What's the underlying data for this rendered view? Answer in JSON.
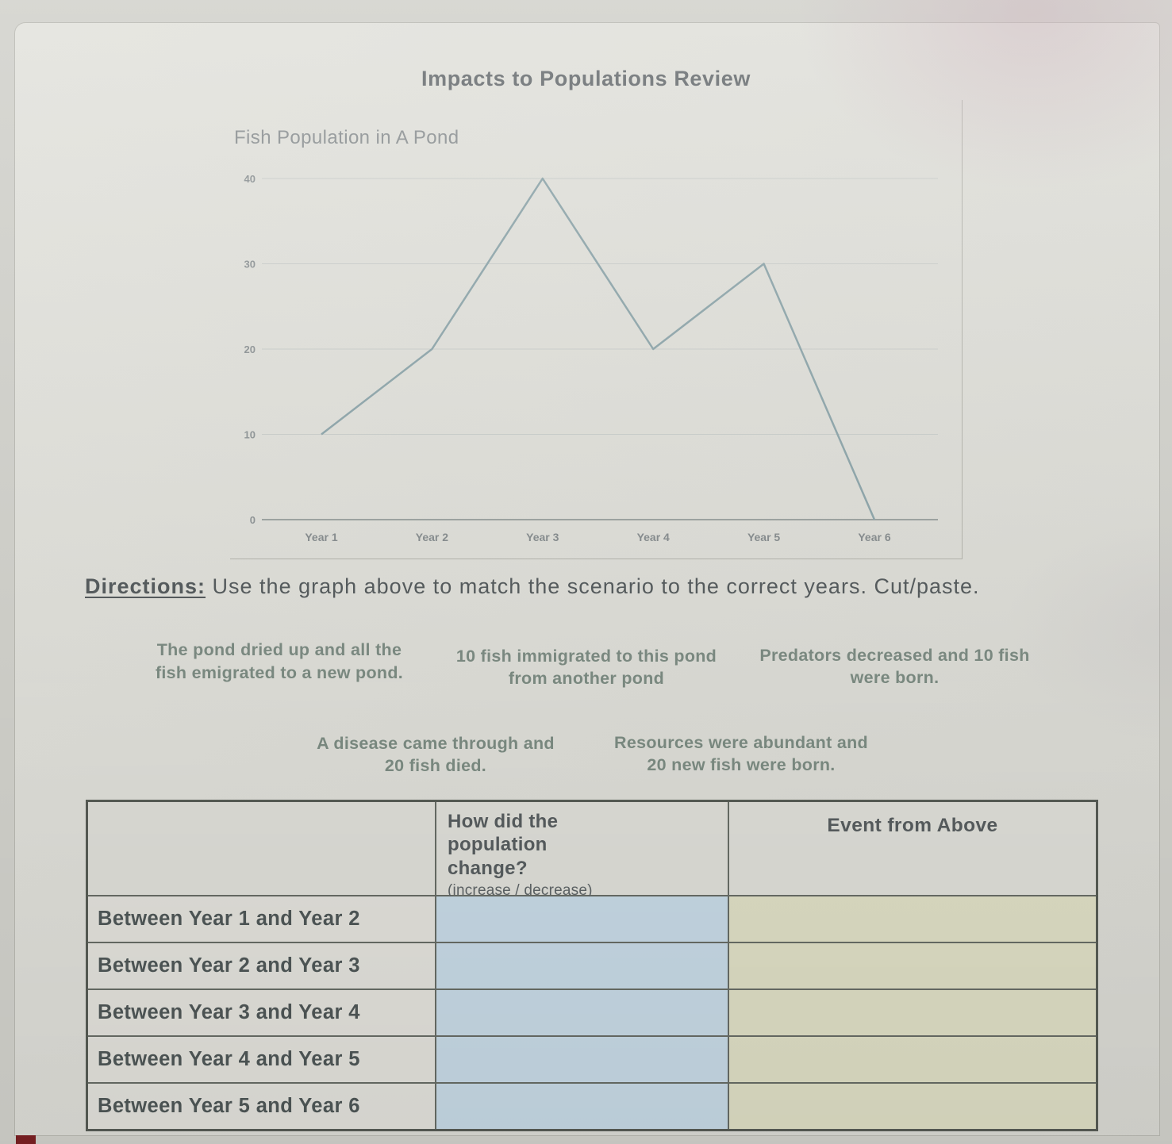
{
  "page": {
    "title": "Impacts to Populations Review",
    "directions_label": "Directions:",
    "directions_text": " Use the graph above to match the scenario to the correct years. Cut/paste."
  },
  "chart_data": {
    "type": "line",
    "title": "Fish Population in A Pond",
    "categories": [
      "Year 1",
      "Year 2",
      "Year 3",
      "Year 4",
      "Year 5",
      "Year 6"
    ],
    "values": [
      10,
      20,
      40,
      20,
      30,
      0
    ],
    "xlabel": "",
    "ylabel": "",
    "ylim": [
      0,
      40
    ],
    "yticks": [
      0,
      10,
      20,
      30,
      40
    ],
    "grid": true,
    "legend": "none",
    "line_color": "#8aa2a7"
  },
  "scenario_cards": [
    {
      "text": "The pond dried up and all the fish emigrated to a new pond."
    },
    {
      "text": "10 fish immigrated to this pond from another pond"
    },
    {
      "text": "Predators decreased and 10 fish were born."
    },
    {
      "text": "A disease came through and 20 fish died."
    },
    {
      "text": "Resources were abundant and 20 new fish were born."
    }
  ],
  "table": {
    "col2_header": "How did the population change?",
    "col2_subheader": "(increase / decrease)",
    "col3_header": "Event from Above",
    "rows": [
      {
        "label": "Between Year 1 and Year 2",
        "change": "",
        "event": ""
      },
      {
        "label": "Between Year 2 and Year 3",
        "change": "",
        "event": ""
      },
      {
        "label": "Between Year 3 and Year 4",
        "change": "",
        "event": ""
      },
      {
        "label": "Between Year 4 and Year 5",
        "change": "",
        "event": ""
      },
      {
        "label": "Between Year 5 and Year 6",
        "change": "",
        "event": ""
      }
    ]
  },
  "colors": {
    "card_bg": "#dee4cc",
    "change_cell_bg": "#c4d6e2",
    "event_cell_bg": "#dbdbc2",
    "line_color": "#8aa2a7"
  }
}
